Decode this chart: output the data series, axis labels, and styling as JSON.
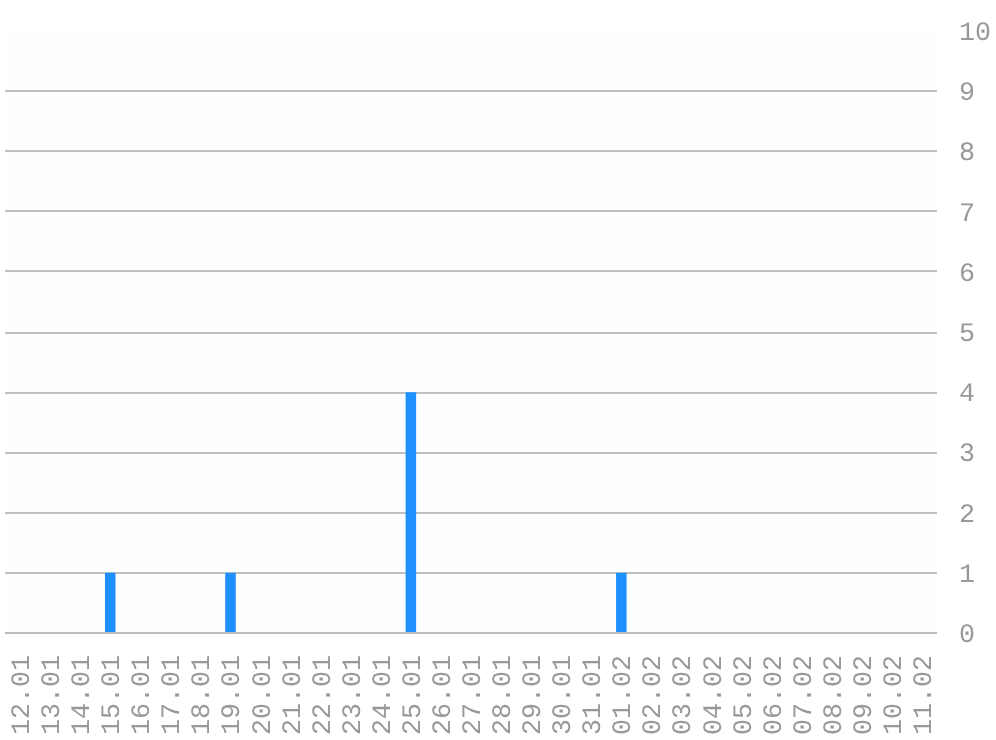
{
  "chart_data": {
    "type": "bar",
    "categories": [
      "12.01",
      "13.01",
      "14.01",
      "15.01",
      "16.01",
      "17.01",
      "18.01",
      "19.01",
      "20.01",
      "21.01",
      "22.01",
      "23.01",
      "24.01",
      "25.01",
      "26.01",
      "27.01",
      "28.01",
      "29.01",
      "30.01",
      "31.01",
      "01.02",
      "02.02",
      "03.02",
      "04.02",
      "05.02",
      "06.02",
      "07.02",
      "08.02",
      "09.02",
      "10.02",
      "11.02"
    ],
    "values": [
      0,
      0,
      0,
      1,
      0,
      0,
      0,
      1,
      0,
      0,
      0,
      0,
      0,
      4,
      0,
      0,
      0,
      0,
      0,
      0,
      1,
      0,
      0,
      0,
      0,
      0,
      0,
      0,
      0,
      0,
      0
    ],
    "color": "#1e90ff",
    "ylim": [
      0,
      10
    ],
    "yticks": [
      0,
      1,
      2,
      3,
      4,
      5,
      6,
      7,
      8,
      9,
      10
    ],
    "grid": "y"
  }
}
